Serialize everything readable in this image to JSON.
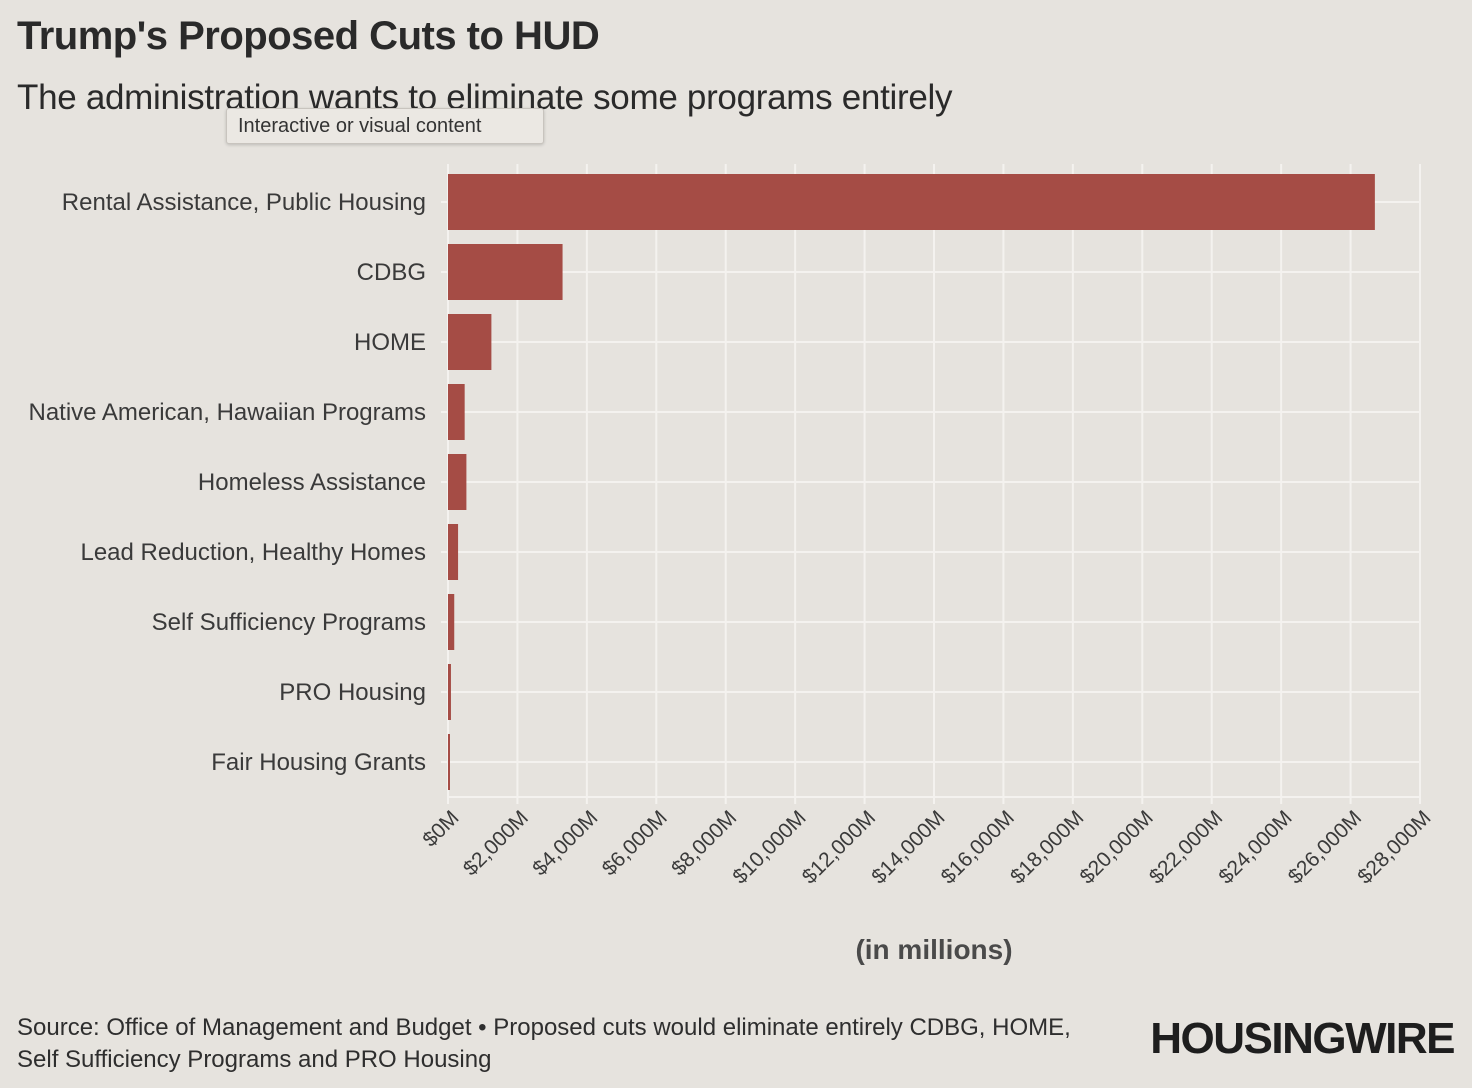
{
  "header": {
    "title": "Trump's Proposed Cuts to HUD",
    "subtitle": "The administration wants to eliminate some programs entirely"
  },
  "tooltip": {
    "text": "Interactive or visual content"
  },
  "chart_data": {
    "type": "bar",
    "orientation": "horizontal",
    "title": "Trump's Proposed Cuts to HUD",
    "subtitle": "The administration wants to eliminate some programs entirely",
    "categories": [
      "Rental Assistance, Public Housing",
      "CDBG",
      "HOME",
      "Native American, Hawaiian Programs",
      "Homeless Assistance",
      "Lead Reduction, Healthy Homes",
      "Self Sufficiency Programs",
      "PRO Housing",
      "Fair Housing Grants"
    ],
    "values": [
      26700,
      3300,
      1250,
      480,
      530,
      290,
      180,
      85,
      55
    ],
    "xlabel": "(in millions)",
    "ylabel": "",
    "xlim": [
      0,
      28000
    ],
    "xticks": [
      0,
      2000,
      4000,
      6000,
      8000,
      10000,
      12000,
      14000,
      16000,
      18000,
      20000,
      22000,
      24000,
      26000,
      28000
    ],
    "xtick_labels": [
      "$0M",
      "$2,000M",
      "$4,000M",
      "$6,000M",
      "$8,000M",
      "$10,000M",
      "$12,000M",
      "$14,000M",
      "$16,000M",
      "$18,000M",
      "$20,000M",
      "$22,000M",
      "$24,000M",
      "$26,000M",
      "$28,000M"
    ],
    "grid": true,
    "legend": "none",
    "bar_color": "#a54c45",
    "grid_color": "#f4f2ef"
  },
  "footer": {
    "source": "Source: Office of Management and Budget • Proposed cuts would eliminate entirely CDBG, HOME, Self Sufficiency Programs and PRO Housing",
    "logo": "HOUSINGWIRE"
  }
}
